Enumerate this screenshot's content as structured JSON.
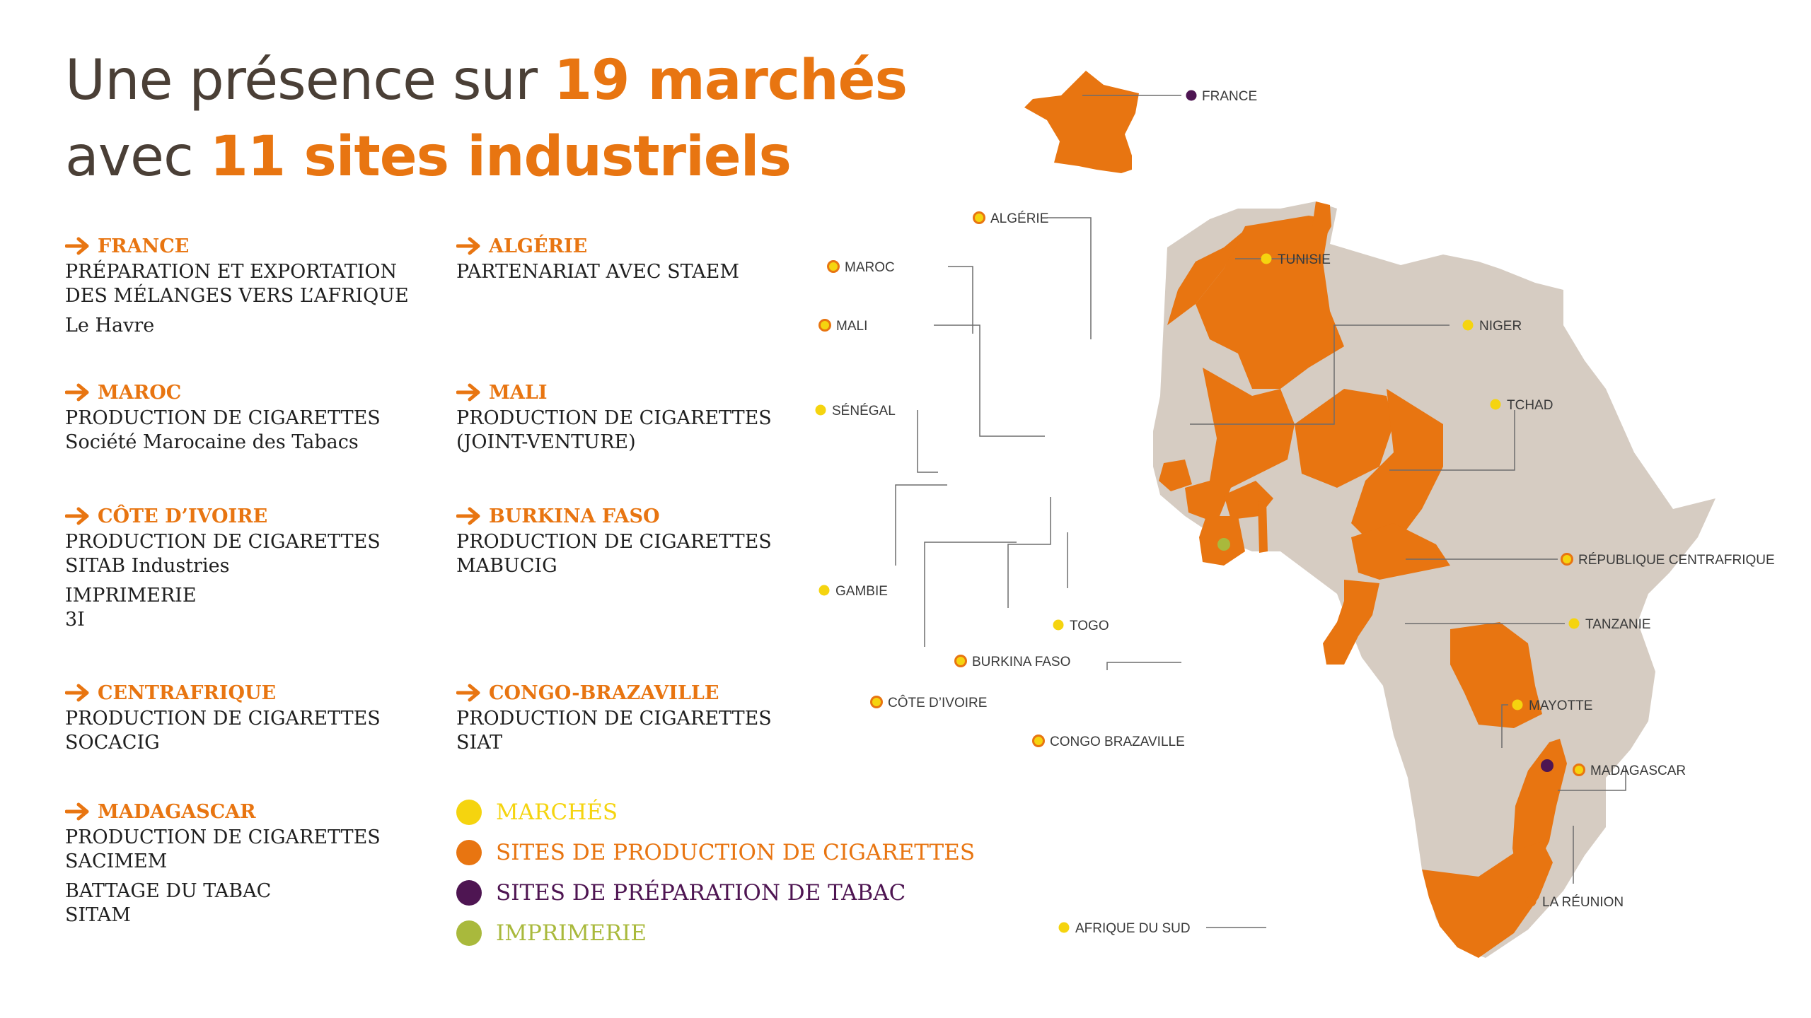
{
  "headline": {
    "part1": "Une présence sur ",
    "highlight1": "19 marchés",
    "part2": "avec ",
    "highlight2": "11 sites industriels"
  },
  "entries": [
    {
      "country": "FRANCE",
      "lines": [
        "PRÉPARATION ET EXPORTATION",
        "DES MÉLANGES VERS L’AFRIQUE",
        "Le Havre"
      ]
    },
    {
      "country": "ALGÉRIE",
      "lines": [
        "PARTENARIAT AVEC STAEM"
      ]
    },
    {
      "country": "MAROC",
      "lines": [
        "PRODUCTION DE CIGARETTES",
        "Société Marocaine des Tabacs"
      ]
    },
    {
      "country": "MALI",
      "lines": [
        "PRODUCTION DE CIGARETTES",
        "(JOINT-VENTURE)"
      ]
    },
    {
      "country": "CÔTE D’IVOIRE",
      "lines": [
        "PRODUCTION DE CIGARETTES",
        "SITAB Industries",
        "IMPRIMERIE",
        "3I"
      ]
    },
    {
      "country": "BURKINA FASO",
      "lines": [
        "PRODUCTION DE CIGARETTES",
        "MABUCIG"
      ]
    },
    {
      "country": "CENTRAFRIQUE",
      "lines": [
        "PRODUCTION DE CIGARETTES",
        "SOCACIG"
      ]
    },
    {
      "country": "CONGO-BRAZAVILLE",
      "lines": [
        "PRODUCTION DE CIGARETTES",
        "SIAT"
      ]
    },
    {
      "country": "MADAGASCAR",
      "lines": [
        "PRODUCTION DE CIGARETTES",
        "SACIMEM",
        "BATTAGE DU TABAC",
        "SITAM"
      ]
    }
  ],
  "legend": [
    {
      "label": "MARCHÉS",
      "color": "#f5d40f"
    },
    {
      "label": "SITES DE PRODUCTION DE CIGARETTES",
      "color": "#e87511"
    },
    {
      "label": "SITES DE PRÉPARATION DE TABAC",
      "color": "#4e1552"
    },
    {
      "label": "IMPRIMERIE",
      "color": "#a9b93c"
    }
  ],
  "map_labels": {
    "france": "FRANCE",
    "algerie": "ALGÉRIE",
    "maroc": "MAROC",
    "tunisie": "TUNISIE",
    "mali": "MALI",
    "niger": "NIGER",
    "senegal": "SÉNÉGAL",
    "tchad": "TCHAD",
    "gambie": "GAMBIE",
    "rca": "RÉPUBLIQUE CENTRAFRIQUE",
    "togo": "TOGO",
    "tanzanie": "TANZANIE",
    "burkina": "BURKINA FASO",
    "cote_ivoire": "CÔTE D’IVOIRE",
    "mayotte": "MAYOTTE",
    "congo": "CONGO BRAZAVILLE",
    "madagascar": "MADAGASCAR",
    "reunion": "LA RÉUNION",
    "afrique_sud": "AFRIQUE DU SUD"
  },
  "colors": {
    "accent": "#e87511",
    "dark": "#4a3f36",
    "land": "#d6ccc2",
    "marche": "#f5d40f",
    "production": "#e87511",
    "preparation": "#4e1552",
    "imprimerie": "#a9b93c"
  },
  "icons": {
    "entry_arrow": "arrow-right-icon"
  }
}
